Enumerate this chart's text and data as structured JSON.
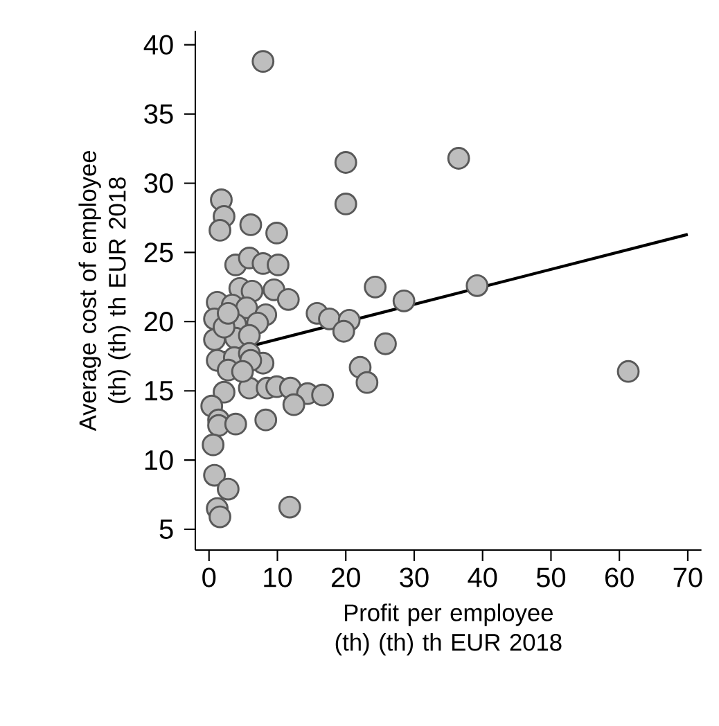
{
  "chart_data": {
    "type": "scatter",
    "xlabel": "Profit per employee (th) (th) th EUR 2018",
    "ylabel": "Average cost of employee (th) (th) th EUR 2018",
    "xlim": [
      -2,
      72
    ],
    "ylim": [
      3.5,
      41
    ],
    "xticks": [
      0,
      10,
      20,
      30,
      40,
      50,
      60,
      70
    ],
    "yticks": [
      5,
      10,
      15,
      20,
      25,
      30,
      35,
      40
    ],
    "grid": false,
    "series": [
      {
        "color": "#bebebe",
        "marker": "circle",
        "x": [
          7.9,
          20.0,
          36.5,
          1.8,
          20.0,
          2.2,
          1.6,
          6.1,
          9.9,
          3.9,
          5.9,
          7.9,
          10.1,
          4.5,
          6.3,
          9.5,
          11.6,
          1.2,
          3.4,
          5.5,
          8.3,
          15.8,
          17.6,
          0.8,
          3.9,
          7.1,
          3.9,
          5.9,
          0.8,
          1.2,
          3.7,
          5.9,
          7.9,
          6.1,
          2.8,
          2.2,
          5.9,
          8.5,
          9.9,
          11.9,
          14.4,
          16.6,
          12.4,
          0.4,
          1.4,
          8.3,
          1.4,
          3.9,
          0.6,
          0.8,
          2.8,
          1.2,
          1.6,
          11.8,
          22.1,
          23.1,
          24.3,
          28.5,
          39.2,
          25.8,
          61.3,
          20.5,
          19.7,
          2.2,
          2.8,
          4.9
        ],
        "values": [
          38.8,
          31.5,
          31.8,
          28.8,
          28.5,
          27.6,
          26.6,
          27.0,
          26.4,
          24.1,
          24.6,
          24.2,
          24.1,
          22.4,
          22.2,
          22.3,
          21.6,
          21.4,
          21.2,
          21.0,
          20.5,
          20.6,
          20.2,
          20.2,
          19.8,
          19.9,
          18.8,
          19.0,
          18.7,
          17.2,
          17.4,
          17.7,
          17.0,
          17.2,
          16.5,
          14.9,
          15.2,
          15.2,
          15.3,
          15.2,
          14.8,
          14.7,
          14.0,
          13.9,
          12.9,
          12.9,
          12.5,
          12.6,
          11.1,
          8.9,
          7.9,
          6.5,
          5.9,
          6.6,
          16.7,
          15.6,
          22.5,
          21.5,
          22.6,
          18.4,
          16.4,
          20.1,
          19.3,
          19.6,
          20.6,
          16.4
        ]
      },
      {
        "type": "line",
        "color": "#000000",
        "marker": "none",
        "line_style": "solid",
        "x": [
          0.3,
          70
        ],
        "values": [
          17.5,
          26.3
        ]
      }
    ]
  }
}
